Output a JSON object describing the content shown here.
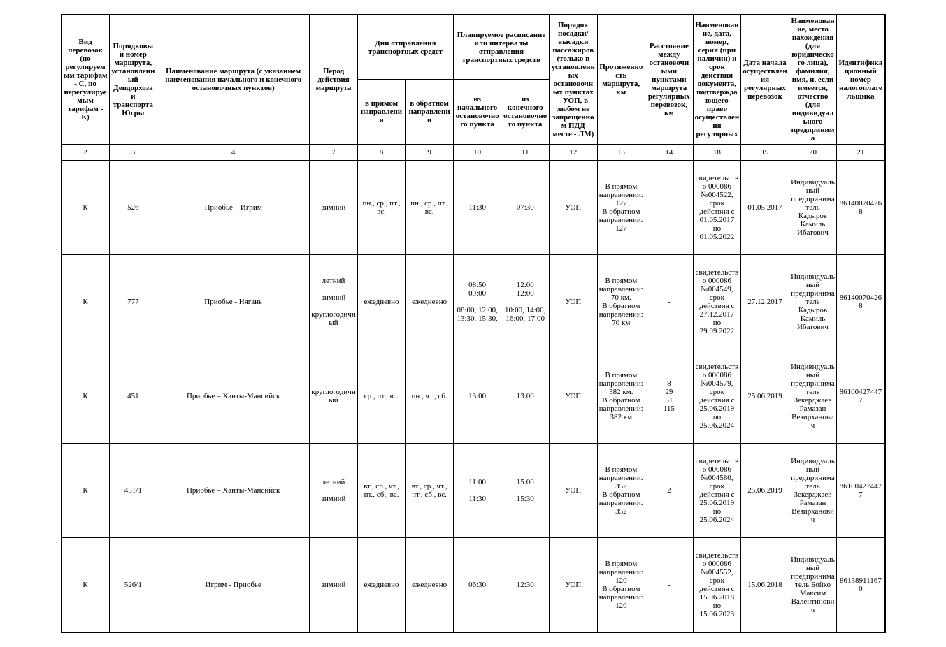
{
  "headers": {
    "c2": "Вид перевозок (по регулируемым тарифам - С, по нерегулируемым тарифам - К)",
    "c3": "Порядковый номер маршрута, установленный Депдорхоза и транспорта Югры",
    "c4": "Наименование маршрута (с указанием наименования начального и конечного остановочных пунктов)",
    "c7": "Перод действия маршрута",
    "c8_9_top": "Дни отправления транспортных средст",
    "c8": "в прямом направлении",
    "c9": "в обратном направлении",
    "c10_11_top": "Планируемое расписание или интервалы отправления транспортных средств",
    "c10": "из начального остановочного пункта",
    "c11": "из конечного остановочного пункта",
    "c12": "Порядок посадки/высадки пассажиров (только в установленных остановочных пунктах - УОП, в любом не запрещенном ПДД месте - ЛМ)",
    "c13": "Протяженность маршрута, км",
    "c14": "Расстояние между остановочными пунктами маршрута регулярных перевозок, км",
    "c18": "Наименование, дата, номер, серия (при наличии) и срок действия документа, подтверждающего право осуществления регулярных",
    "c19": "Дата начала осуществления регулярных перевозок",
    "c20": "Наименование, место нахождения (для юридического лица), фамилия, имя, и, если имеется, отчество (для индивидуального предпринима",
    "c21": "Идентификационный номер налогоплательщика"
  },
  "colnums": {
    "c2": "2",
    "c3": "3",
    "c4": "4",
    "c7": "7",
    "c8": "8",
    "c9": "9",
    "c10": "10",
    "c11": "11",
    "c12": "12",
    "c13": "13",
    "c14": "14",
    "c18": "18",
    "c19": "19",
    "c20": "20",
    "c21": "21"
  },
  "rows": [
    {
      "c2": "К",
      "c3": "526",
      "c4": "Приобье – Игрим",
      "c7": "зимний",
      "c8": "пн., ср., пт., вс.",
      "c9": "пн., ср., пт., вс.",
      "c10": "11:30",
      "c11": "07:30",
      "c12": "УОП",
      "c13": "В прямом направлении: 127\nВ обратном направлении: 127",
      "c14": "-",
      "c18": "свидетельство 000086 №004522, срок действия с 01.05.2017 по 01.05.2022",
      "c19": "01.05.2017",
      "c20": "Индивидуальный предприниматель Кадыров Камиль Ибатович",
      "c21": "861400704268"
    },
    {
      "c2": "К",
      "c3": "777",
      "c4": "Приобье - Нягань",
      "c7": "летний\n\nзимний\n\nкруглогодичный",
      "c8": "ежедневно",
      "c9": "ежедневно",
      "c10": "08:50\n09:00\n\n08:00, 12:00, 13:30, 15:30,",
      "c11": "12:00\n12:00\n\n10:00, 14:00, 16:00, 17:00",
      "c12": "УОП",
      "c13": "В прямом направлении:\n70 км.\nВ обратном направлении:\n70 км",
      "c14": "-",
      "c18": "свидетельство 000086 №004549, срок действия с 27.12.2017 по 29.09.2022",
      "c19": "27.12.2017",
      "c20": "Индивидуальный предприниматель Кадыров Камиль Ибатович",
      "c21": "861400704268"
    },
    {
      "c2": "К",
      "c3": "451",
      "c4": "Приобье – Ханты-Мансийск",
      "c7": "круглогодичный",
      "c8": "ср., пт., вс.",
      "c9": "пн., чт., сб.",
      "c10": "13:00",
      "c11": "13:00",
      "c12": "УОП",
      "c13": "В прямом направлении: 382 км.\nВ обратном направлении: 382 км",
      "c14": "8\n29\n51\n115",
      "c18": "свидетельство 000086 №004579, срок действия с 25.06.2019 по 25.06.2024",
      "c19": "25.06.2019",
      "c20": "Индивидуальный предприниматель Зекерджаев Рамазан Везирханович",
      "c21": "861004274477"
    },
    {
      "c2": "К",
      "c3": "451/1",
      "c4": "Приобье – Ханты-Мансийск",
      "c7": "летний\n\nзимний",
      "c8": "вт., ср., чт., пт., сб., вс.",
      "c9": "вт., ср., чт., пт., сб., вс.",
      "c10": "11:00\n\n11:30",
      "c11": "15:00\n\n15:30",
      "c12": "УОП",
      "c13": "В прямом направлении: 352\nВ обратном направлении: 352",
      "c14": "2",
      "c18": "свидетельство 000086 №004580, срок действия с 25.06.2019 по 25.06.2024",
      "c19": "25.06.2019",
      "c20": "Индивидуальный предприниматель Зекерджаев Рамазан Везирханович",
      "c21": "861004274477"
    },
    {
      "c2": "К",
      "c3": "526/1",
      "c4": "Игрим - Приобье",
      "c7": "зимний",
      "c8": "ежедневно",
      "c9": "ежедневно",
      "c10": "06:30",
      "c11": "12:30",
      "c12": "УОП",
      "c13": "В прямом направлении: 120\nВ обратном направлении: 120",
      "c14": "-",
      "c18": "свидетельство 000086 №004552, срок действия с 15.06.2018 по 15.06.2023",
      "c19": "15.06.2018",
      "c20": "Индивидуальный предприниматель Бойко Максим Валентинович",
      "c21": "861389111670"
    }
  ]
}
